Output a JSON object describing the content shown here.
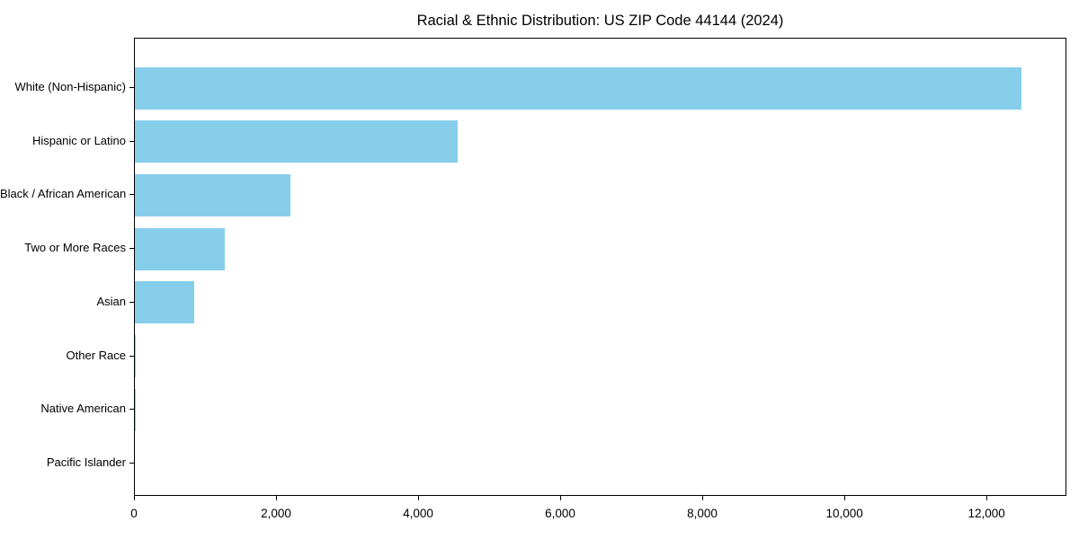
{
  "figure": {
    "background_color": "#ffffff",
    "spine_color": "#000000",
    "text_color": "#000000"
  },
  "chart_data": {
    "type": "bar",
    "orientation": "horizontal",
    "title": "Racial & Ethnic Distribution: US ZIP Code 44144 (2024)",
    "xlabel": "",
    "ylabel": "",
    "categories": [
      "White (Non-Hispanic)",
      "Hispanic or Latino",
      "Black / African American",
      "Two or More Races",
      "Asian",
      "Other Race",
      "Native American",
      "Pacific Islander"
    ],
    "values": [
      12500,
      4550,
      2200,
      1270,
      840,
      15,
      5,
      0
    ],
    "bar_color": "#87CEEB",
    "xlim": [
      0,
      13125
    ],
    "x_ticks": [
      0,
      2000,
      4000,
      6000,
      8000,
      10000,
      12000
    ],
    "x_tick_labels": [
      "0",
      "2,000",
      "4,000",
      "6,000",
      "8,000",
      "10,000",
      "12,000"
    ],
    "grid": false,
    "legend": "none",
    "value_labels_shown": false
  }
}
